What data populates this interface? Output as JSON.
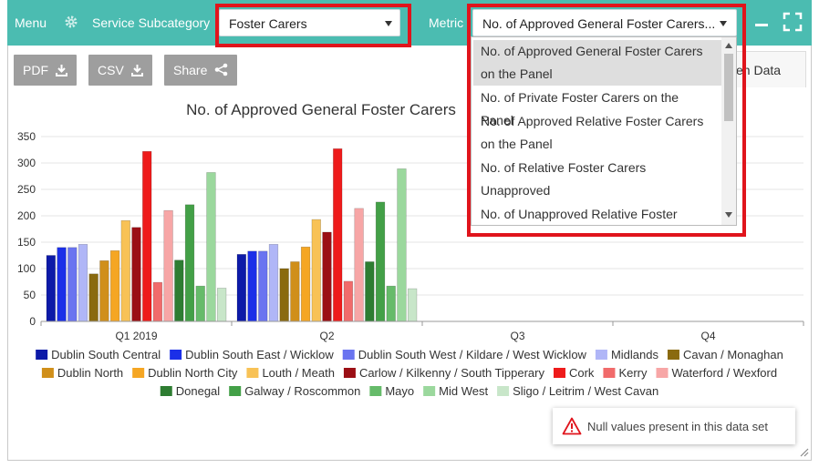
{
  "header": {
    "menu_label": "Menu",
    "service_subcategory_label": "Service Subcategory",
    "service_subcategory_value": "Foster Carers",
    "metric_label": "Metric",
    "metric_value": "No. of Approved General Foster Carers..."
  },
  "toolbar": {
    "pdf_label": "PDF",
    "csv_label": "CSV",
    "share_label": "Share",
    "tab_partial_label": "en Data"
  },
  "metric_dropdown": {
    "options": [
      {
        "lines": [
          "No. of Approved General Foster Carers",
          "on the Panel"
        ],
        "selected": true
      },
      {
        "lines": [
          "No. of Private Foster Carers on the Panel"
        ],
        "selected": false
      },
      {
        "lines": [
          "No. of Approved Relative Foster Carers",
          "on the Panel"
        ],
        "selected": false
      },
      {
        "lines": [
          "No. of Relative Foster Carers",
          "Unapproved"
        ],
        "selected": false
      },
      {
        "lines": [
          "No. of Unapproved Relative Foster"
        ],
        "selected": false
      }
    ]
  },
  "notice": {
    "text": "Null values present in this data set",
    "icon": "warning-icon"
  },
  "colors": {
    "topbar": "#4bbcb1",
    "highlight": "#e0141c"
  },
  "chart_data": {
    "type": "bar",
    "title": "No. of Approved General Foster Carers",
    "categories": [
      "Q1 2019",
      "Q2",
      "Q3",
      "Q4"
    ],
    "ylim": [
      0,
      350
    ],
    "yticks": [
      0,
      50,
      100,
      150,
      200,
      250,
      300,
      350
    ],
    "grid": true,
    "legend_position": "bottom",
    "series": [
      {
        "name": "Dublin South Central",
        "color": "#0d1aa8",
        "values": [
          125,
          127,
          null,
          null
        ]
      },
      {
        "name": "Dublin South East / Wicklow",
        "color": "#1b2fe8",
        "values": [
          140,
          133,
          null,
          null
        ]
      },
      {
        "name": "Dublin South West / Kildare / West Wicklow",
        "color": "#6a74f0",
        "values": [
          140,
          133,
          null,
          null
        ]
      },
      {
        "name": "Midlands",
        "color": "#b0b6f7",
        "values": [
          146,
          146,
          null,
          null
        ]
      },
      {
        "name": "Cavan / Monaghan",
        "color": "#8a6a0f",
        "values": [
          90,
          100,
          null,
          null
        ]
      },
      {
        "name": "Dublin North",
        "color": "#d08f1a",
        "values": [
          115,
          113,
          null,
          null
        ]
      },
      {
        "name": "Dublin North City",
        "color": "#f5a623",
        "values": [
          134,
          141,
          null,
          null
        ]
      },
      {
        "name": "Louth / Meath",
        "color": "#f8c256",
        "values": [
          191,
          193,
          null,
          null
        ]
      },
      {
        "name": "Carlow / Kilkenny / South Tipperary",
        "color": "#9b0f15",
        "values": [
          178,
          169,
          null,
          null
        ]
      },
      {
        "name": "Cork",
        "color": "#ee1b1b",
        "values": [
          322,
          327,
          null,
          null
        ]
      },
      {
        "name": "Kerry",
        "color": "#f16b6b",
        "values": [
          74,
          76,
          null,
          null
        ]
      },
      {
        "name": "Waterford / Wexford",
        "color": "#f7a6a6",
        "values": [
          210,
          214,
          null,
          null
        ]
      },
      {
        "name": "Donegal",
        "color": "#2e7d32",
        "values": [
          116,
          113,
          null,
          null
        ]
      },
      {
        "name": "Galway / Roscommon",
        "color": "#43a047",
        "values": [
          221,
          226,
          null,
          null
        ]
      },
      {
        "name": "Mayo",
        "color": "#66bb6a",
        "values": [
          67,
          67,
          null,
          null
        ]
      },
      {
        "name": "Mid West",
        "color": "#9bd89d",
        "values": [
          282,
          289,
          null,
          null
        ]
      },
      {
        "name": "Sligo / Leitrim / West Cavan",
        "color": "#c8e6c9",
        "values": [
          63,
          62,
          null,
          null
        ]
      }
    ]
  }
}
